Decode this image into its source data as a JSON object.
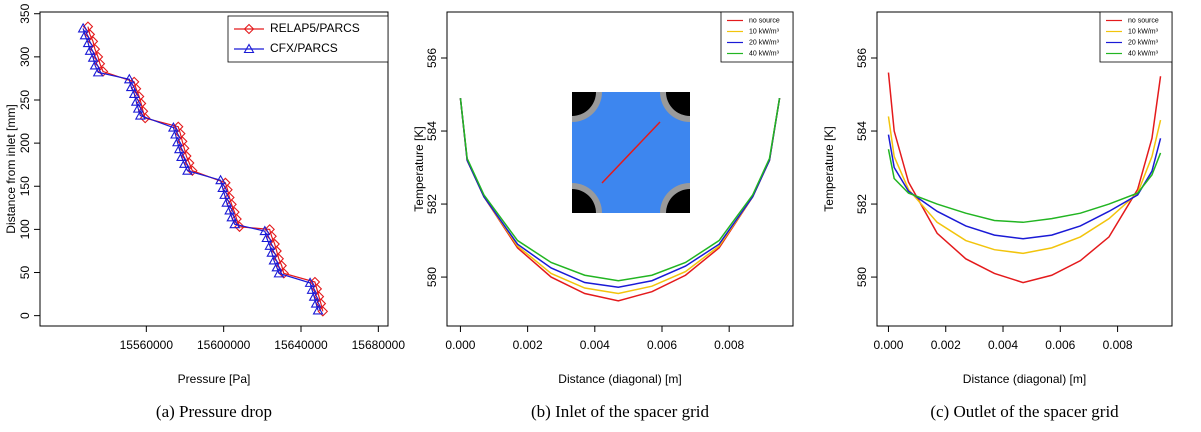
{
  "chart_data": [
    {
      "type": "line",
      "legend": "top-right",
      "x_label": "Pressure [Pa]",
      "y_label": "Distance from inlet [mm]",
      "caption": "(a) Pressure drop",
      "xlim": [
        15505000,
        15685000
      ],
      "xticks": [
        15560000,
        15600000,
        15640000,
        15680000
      ],
      "ylim": [
        -12,
        352
      ],
      "yticks": [
        0,
        50,
        100,
        150,
        200,
        250,
        300,
        350
      ],
      "series": [
        {
          "name": "RELAP5/PARCS",
          "color": "#e41a1c",
          "marker": "diamond",
          "x": [
            15529800,
            15530800,
            15532400,
            15533400,
            15535000,
            15536000,
            15537600,
            15553700,
            15554700,
            15556300,
            15557300,
            15558300,
            15559400,
            15576500,
            15577600,
            15578600,
            15579600,
            15580700,
            15582200,
            15583800,
            15600900,
            15602000,
            15603000,
            15604100,
            15605600,
            15606700,
            15608200,
            15623800,
            15624800,
            15626400,
            15627400,
            15628500,
            15630000,
            15631100,
            15647200,
            15648200,
            15649300,
            15650300,
            15651300
          ],
          "values": [
            335,
            326,
            318,
            309,
            300,
            292,
            283,
            271,
            263,
            254,
            246,
            237,
            229,
            219,
            211,
            202,
            194,
            185,
            177,
            168,
            154,
            146,
            137,
            129,
            120,
            112,
            103,
            100,
            92,
            83,
            75,
            66,
            58,
            49,
            39,
            31,
            22,
            14,
            5
          ]
        },
        {
          "name": "CFX/PARCS",
          "color": "#1a1ad6",
          "marker": "triangle",
          "x": [
            15527300,
            15528300,
            15529900,
            15530900,
            15532500,
            15533500,
            15535100,
            15551200,
            15552200,
            15553800,
            15554800,
            15555800,
            15556900,
            15574000,
            15575100,
            15576100,
            15577100,
            15578200,
            15579700,
            15581300,
            15598400,
            15599500,
            15600500,
            15601600,
            15603100,
            15604200,
            15605700,
            15621300,
            15622300,
            15623900,
            15624900,
            15626000,
            15627500,
            15628600,
            15644700,
            15645700,
            15646800,
            15647800,
            15648800
          ],
          "values": [
            333,
            325,
            316,
            307,
            299,
            290,
            282,
            274,
            265,
            257,
            248,
            240,
            232,
            218,
            210,
            201,
            193,
            184,
            176,
            168,
            157,
            148,
            140,
            131,
            122,
            114,
            106,
            98,
            90,
            81,
            73,
            64,
            56,
            49,
            38,
            30,
            22,
            14,
            6
          ]
        }
      ]
    },
    {
      "type": "line",
      "legend": "top-right",
      "x_label": "Distance (diagonal) [m]",
      "y_label": "Temperature [K]",
      "caption": "(b) Inlet of the spacer grid",
      "xlim": [
        -0.0004,
        0.0099
      ],
      "xticks": [
        {
          "value": 0,
          "label": "0.000"
        },
        {
          "value": 0.002,
          "label": "0.002"
        },
        {
          "value": 0.004,
          "label": "0.004"
        },
        {
          "value": 0.006,
          "label": "0.006"
        },
        {
          "value": 0.008,
          "label": "0.008"
        }
      ],
      "ylim": [
        578.66,
        587.26
      ],
      "yticks": [
        580,
        582,
        584,
        586
      ],
      "x": [
        0,
        0.0002,
        0.0007,
        0.0017,
        0.0027,
        0.0037,
        0.0047,
        0.0057,
        0.0067,
        0.0077,
        0.0087,
        0.0092,
        0.0095
      ],
      "series": [
        {
          "name": "no source",
          "color": "#e41a1c",
          "values": [
            584.9,
            583.2,
            582.2,
            580.8,
            580.0,
            579.55,
            579.35,
            579.6,
            580.05,
            580.8,
            582.2,
            583.2,
            584.9
          ]
        },
        {
          "name": "10 kW/m³",
          "color": "#f2c40c",
          "values": [
            584.9,
            583.2,
            582.2,
            580.85,
            580.1,
            579.7,
            579.55,
            579.75,
            580.15,
            580.85,
            582.2,
            583.2,
            584.9
          ]
        },
        {
          "name": "20 kW/m³",
          "color": "#1a1ad6",
          "values": [
            584.9,
            583.2,
            582.2,
            580.9,
            580.25,
            579.85,
            579.72,
            579.9,
            580.3,
            580.9,
            582.2,
            583.2,
            584.9
          ]
        },
        {
          "name": "40 kW/m³",
          "color": "#22b522",
          "values": [
            584.9,
            583.25,
            582.25,
            581.0,
            580.4,
            580.05,
            579.9,
            580.05,
            580.4,
            581.0,
            582.25,
            583.25,
            584.9
          ]
        }
      ]
    },
    {
      "type": "line",
      "legend": "top-right",
      "x_label": "Distance (diagonal) [m]",
      "y_label": "Temperature [K]",
      "caption": "(c) Outlet of the spacer grid",
      "xlim": [
        -0.0004,
        0.0099
      ],
      "xticks": [
        {
          "value": 0,
          "label": "0.000"
        },
        {
          "value": 0.002,
          "label": "0.002"
        },
        {
          "value": 0.004,
          "label": "0.004"
        },
        {
          "value": 0.006,
          "label": "0.006"
        },
        {
          "value": 0.008,
          "label": "0.008"
        }
      ],
      "ylim": [
        578.66,
        587.26
      ],
      "yticks": [
        580,
        582,
        584,
        586
      ],
      "x": [
        0,
        0.0002,
        0.0007,
        0.0017,
        0.0027,
        0.0037,
        0.0047,
        0.0057,
        0.0067,
        0.0077,
        0.0087,
        0.0092,
        0.0095
      ],
      "series": [
        {
          "name": "no source",
          "color": "#e41a1c",
          "values": [
            585.6,
            584.0,
            582.6,
            581.2,
            580.5,
            580.1,
            579.85,
            580.05,
            580.45,
            581.1,
            582.4,
            583.8,
            585.5
          ]
        },
        {
          "name": "10 kW/m³",
          "color": "#f2c40c",
          "values": [
            584.4,
            583.3,
            582.4,
            581.5,
            581.0,
            580.75,
            580.65,
            580.8,
            581.1,
            581.6,
            582.3,
            583.3,
            584.3
          ]
        },
        {
          "name": "20 kW/m³",
          "color": "#1a1ad6",
          "values": [
            583.9,
            583.0,
            582.35,
            581.8,
            581.4,
            581.15,
            581.05,
            581.15,
            581.4,
            581.8,
            582.25,
            582.9,
            583.8
          ]
        },
        {
          "name": "40 kW/m³",
          "color": "#22b522",
          "values": [
            583.5,
            582.7,
            582.3,
            582.0,
            581.75,
            581.55,
            581.5,
            581.6,
            581.75,
            582.0,
            582.3,
            582.8,
            583.4
          ]
        }
      ]
    }
  ]
}
